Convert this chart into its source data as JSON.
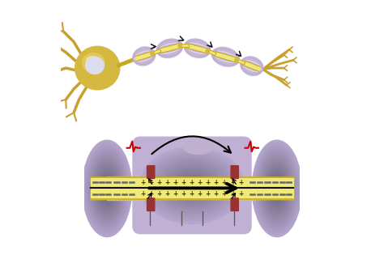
{
  "bg_color": "#ffffff",
  "myelin_outer": "#c8b8d8",
  "myelin_inner": "#e0d4ec",
  "myelin_line": "#b8a8cc",
  "axon_yellow": "#f0e878",
  "axon_yellow2": "#e8dc60",
  "axon_border": "#c8a820",
  "soma_gold": "#d4b840",
  "soma_light": "#e8cc60",
  "soma_bright": "#f8e898",
  "nucleus_color": "#dcdcf0",
  "node_color": "#8b2020",
  "node_dark": "#993333",
  "signal_red": "#cc0000",
  "arrow_black": "#111111",
  "minus_gray": "#666666",
  "plus_dark": "#333300",
  "terminal_gold": "#c8a030",
  "dendrite_gold": "#c8a030",
  "label_line": "#555555",
  "ring_base": "#c0b0d4",
  "center_blob": "#c8b8d8",
  "center_inner": "#d8cce8"
}
